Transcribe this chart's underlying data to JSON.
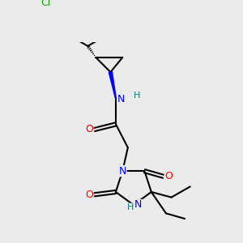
{
  "bg_color": "#ebebeb",
  "atom_colors": {
    "N": "#0000ff",
    "O": "#ff0000",
    "Cl": "#00aa00",
    "H_label": "#008080",
    "C": "#000000"
  },
  "bond_lw": 1.5,
  "font_size": 9
}
